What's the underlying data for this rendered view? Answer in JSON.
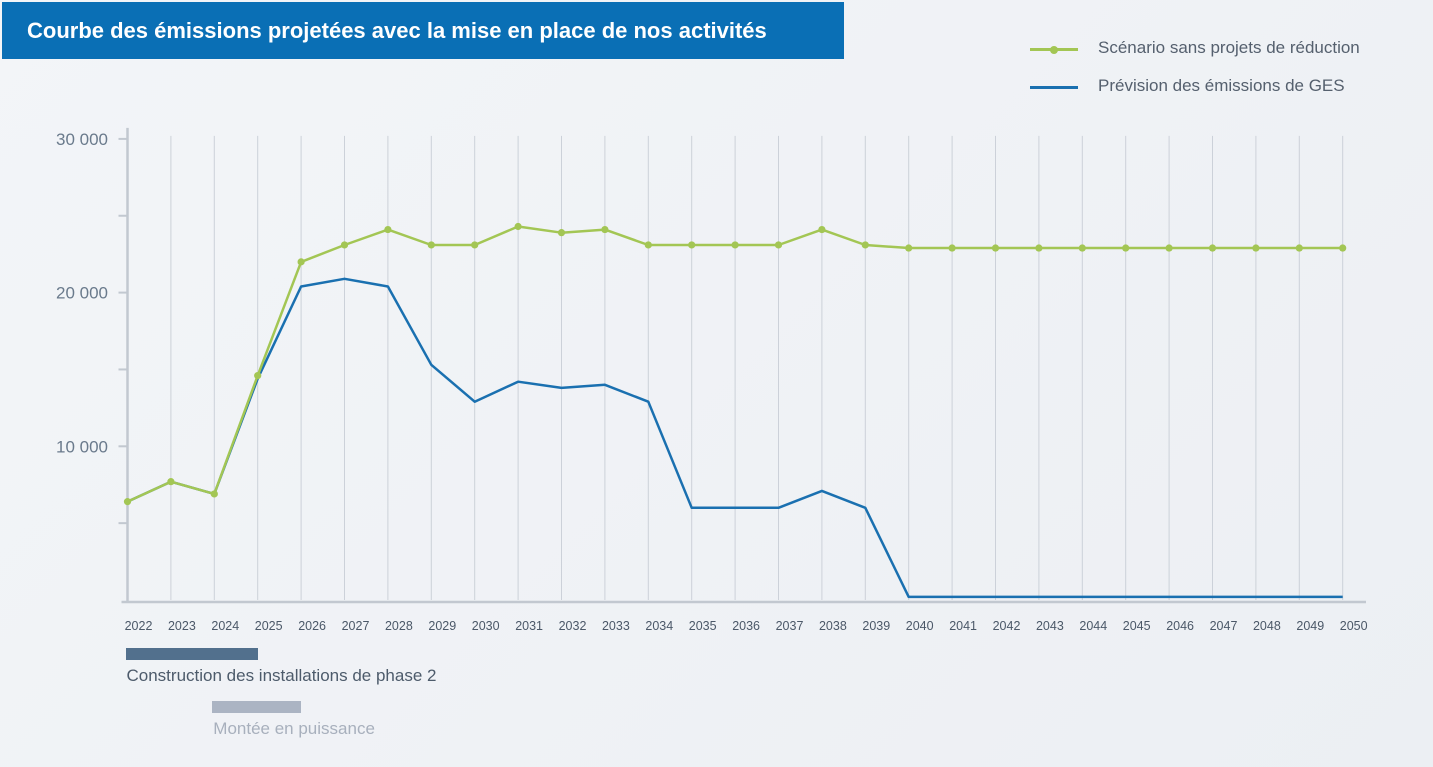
{
  "chart_data": {
    "type": "line",
    "title": "Courbe des émissions projetées avec la mise en place de nos activités",
    "x": [
      "2022",
      "2023",
      "2024",
      "2025",
      "2026",
      "2027",
      "2028",
      "2029",
      "2030",
      "2031",
      "2032",
      "2033",
      "2034",
      "2035",
      "2036",
      "2037",
      "2038",
      "2039",
      "2040",
      "2041",
      "2042",
      "2043",
      "2044",
      "2045",
      "2046",
      "2047",
      "2048",
      "2049",
      "2050"
    ],
    "ylim": [
      0,
      30000
    ],
    "yticks": [
      {
        "value": 10000,
        "label": "10 000"
      },
      {
        "value": 20000,
        "label": "20 000"
      },
      {
        "value": 30000,
        "label": "30 000"
      }
    ],
    "yminor": [
      5000,
      15000,
      25000
    ],
    "grid": "vertical",
    "legend_position": "top-right",
    "series": [
      {
        "name": "Scénario sans projets de réduction",
        "color": "#a3c654",
        "markers": true,
        "values": [
          6400,
          7700,
          6900,
          14600,
          22000,
          23100,
          24100,
          23100,
          23100,
          24300,
          23900,
          24100,
          23100,
          23100,
          23100,
          23100,
          24100,
          23100,
          22900,
          22900,
          22900,
          22900,
          22900,
          22900,
          22900,
          22900,
          22900,
          22900,
          22900
        ]
      },
      {
        "name": "Prévision des émissions de GES",
        "color": "#1a70b0",
        "markers": false,
        "values": [
          6400,
          7700,
          6900,
          14400,
          20400,
          20900,
          20400,
          15300,
          12900,
          14200,
          13800,
          14000,
          12900,
          6000,
          6000,
          6000,
          7100,
          6000,
          200,
          200,
          200,
          200,
          200,
          200,
          200,
          200,
          200,
          200,
          200
        ]
      }
    ],
    "phases": [
      {
        "label": "Construction des installations de phase 2",
        "start": "2022",
        "end": "2025",
        "color": "#52708d",
        "label_color": "#4d5b6b"
      },
      {
        "label": "Montée en puissance",
        "start": "2024",
        "end": "2026",
        "color": "#abb4c3",
        "label_color": "#a8b0bd"
      }
    ]
  },
  "colors": {
    "title_bg": "#0a6fb5",
    "axis": "#c2c8d0",
    "grid": "#ccd1d9",
    "tick_label": "#6a7a8c",
    "x_label": "#4b5868"
  }
}
